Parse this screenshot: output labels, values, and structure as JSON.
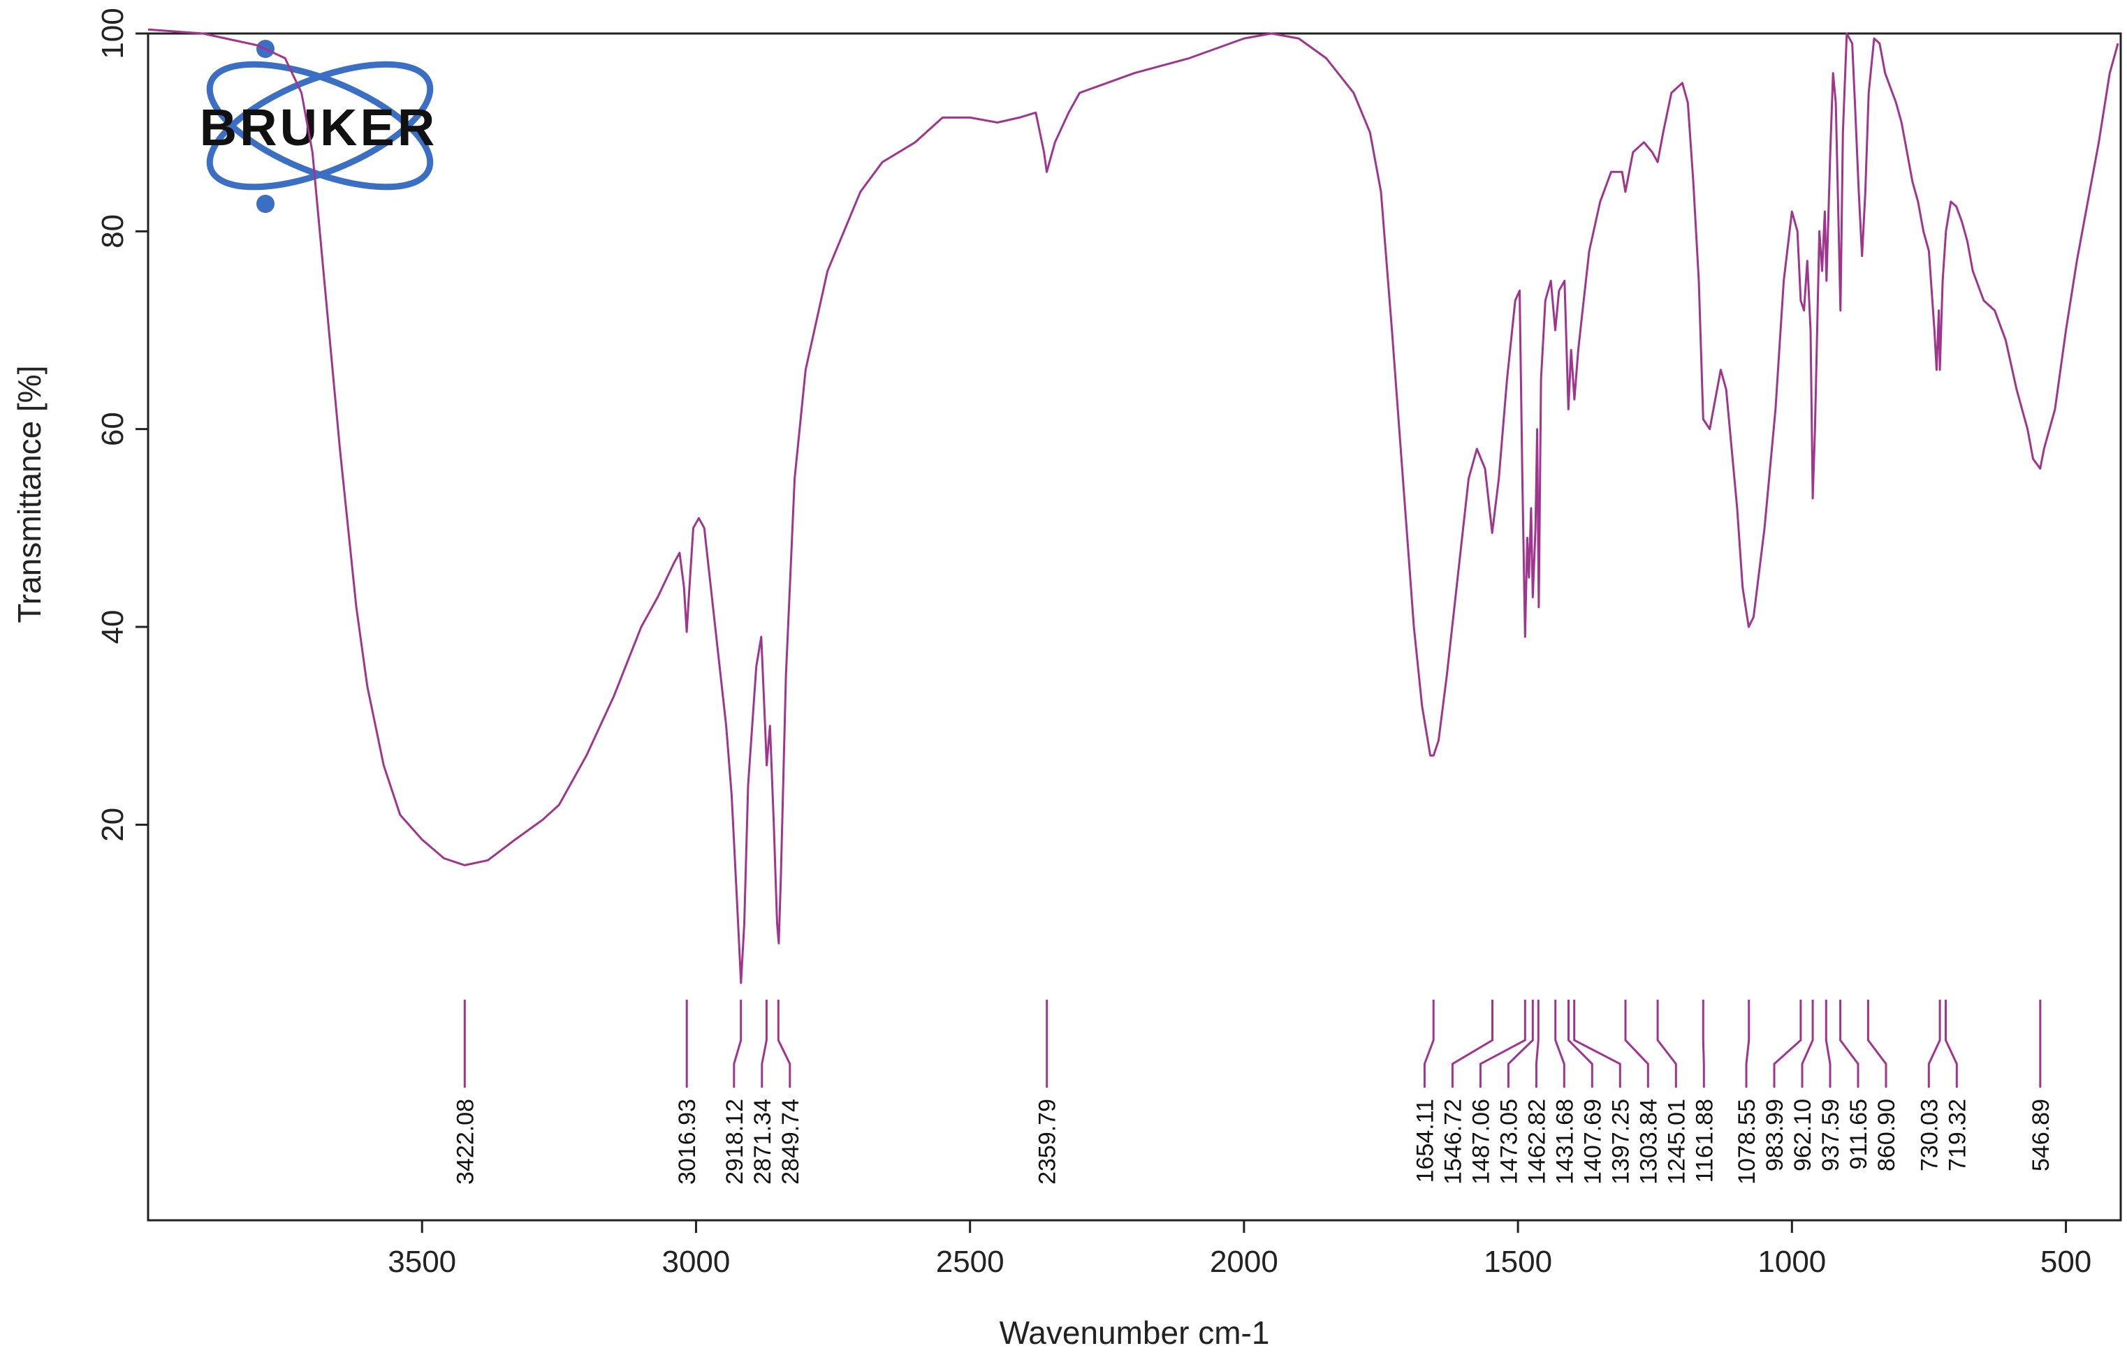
{
  "chart_data": {
    "type": "line",
    "xlabel": "Wavenumber cm-1",
    "ylabel": "Transmittance [%]",
    "x_reversed": true,
    "xlim": [
      4000,
      400
    ],
    "ylim": [
      -20,
      100
    ],
    "x_ticks": [
      3500,
      3000,
      2500,
      2000,
      1500,
      1000,
      500
    ],
    "y_ticks": [
      20,
      40,
      60,
      80,
      100
    ],
    "grid": false,
    "series": [
      {
        "color": "#a0358e",
        "points": [
          [
            4000,
            100.4
          ],
          [
            3900,
            100.0
          ],
          [
            3800,
            98.8
          ],
          [
            3750,
            97.5
          ],
          [
            3720,
            94
          ],
          [
            3700,
            88
          ],
          [
            3680,
            76
          ],
          [
            3650,
            58
          ],
          [
            3620,
            42
          ],
          [
            3600,
            34
          ],
          [
            3570,
            26
          ],
          [
            3540,
            21
          ],
          [
            3500,
            18.5
          ],
          [
            3460,
            16.6
          ],
          [
            3422,
            15.9
          ],
          [
            3380,
            16.4
          ],
          [
            3330,
            18.5
          ],
          [
            3280,
            20.5
          ],
          [
            3250,
            22
          ],
          [
            3200,
            27
          ],
          [
            3150,
            33
          ],
          [
            3100,
            40
          ],
          [
            3070,
            43
          ],
          [
            3040,
            46.5
          ],
          [
            3030,
            47.5
          ],
          [
            3022,
            44
          ],
          [
            3017,
            39.5
          ],
          [
            3012,
            44
          ],
          [
            3005,
            50
          ],
          [
            2995,
            51
          ],
          [
            2985,
            50
          ],
          [
            2965,
            40
          ],
          [
            2945,
            30
          ],
          [
            2935,
            23
          ],
          [
            2925,
            12
          ],
          [
            2918,
            4
          ],
          [
            2912,
            10
          ],
          [
            2905,
            24
          ],
          [
            2890,
            36
          ],
          [
            2881,
            39
          ],
          [
            2874,
            30
          ],
          [
            2871,
            26
          ],
          [
            2865,
            30
          ],
          [
            2858,
            20
          ],
          [
            2852,
            10
          ],
          [
            2849,
            8
          ],
          [
            2845,
            15
          ],
          [
            2836,
            35
          ],
          [
            2820,
            55
          ],
          [
            2800,
            66
          ],
          [
            2760,
            76
          ],
          [
            2700,
            84
          ],
          [
            2660,
            87
          ],
          [
            2600,
            89
          ],
          [
            2550,
            91.5
          ],
          [
            2500,
            91.5
          ],
          [
            2450,
            91
          ],
          [
            2410,
            91.5
          ],
          [
            2380,
            92
          ],
          [
            2365,
            88
          ],
          [
            2360,
            86
          ],
          [
            2345,
            89
          ],
          [
            2320,
            92
          ],
          [
            2300,
            94
          ],
          [
            2200,
            96
          ],
          [
            2100,
            97.5
          ],
          [
            2000,
            99.5
          ],
          [
            1950,
            100
          ],
          [
            1900,
            99.5
          ],
          [
            1850,
            97.5
          ],
          [
            1800,
            94
          ],
          [
            1770,
            90
          ],
          [
            1750,
            84
          ],
          [
            1730,
            70
          ],
          [
            1710,
            55
          ],
          [
            1690,
            40
          ],
          [
            1675,
            32
          ],
          [
            1660,
            27
          ],
          [
            1654,
            27
          ],
          [
            1645,
            28.5
          ],
          [
            1630,
            35
          ],
          [
            1610,
            45
          ],
          [
            1590,
            55
          ],
          [
            1575,
            58
          ],
          [
            1560,
            56
          ],
          [
            1547,
            49.5
          ],
          [
            1535,
            55
          ],
          [
            1520,
            65
          ],
          [
            1505,
            73
          ],
          [
            1497,
            74
          ],
          [
            1492,
            55
          ],
          [
            1487,
            39
          ],
          [
            1483,
            49
          ],
          [
            1480,
            45
          ],
          [
            1476,
            52
          ],
          [
            1473,
            43
          ],
          [
            1468,
            50
          ],
          [
            1465,
            60
          ],
          [
            1462,
            42
          ],
          [
            1458,
            65
          ],
          [
            1450,
            73
          ],
          [
            1440,
            75
          ],
          [
            1432,
            70
          ],
          [
            1425,
            74
          ],
          [
            1415,
            75
          ],
          [
            1408,
            62
          ],
          [
            1403,
            68
          ],
          [
            1397,
            63
          ],
          [
            1390,
            68
          ],
          [
            1380,
            73
          ],
          [
            1370,
            78
          ],
          [
            1350,
            83
          ],
          [
            1330,
            86
          ],
          [
            1310,
            86
          ],
          [
            1304,
            84
          ],
          [
            1290,
            88
          ],
          [
            1270,
            89
          ],
          [
            1255,
            88
          ],
          [
            1245,
            87
          ],
          [
            1235,
            90
          ],
          [
            1220,
            94
          ],
          [
            1200,
            95
          ],
          [
            1190,
            93
          ],
          [
            1180,
            85
          ],
          [
            1170,
            75
          ],
          [
            1162,
            61
          ],
          [
            1150,
            60
          ],
          [
            1140,
            63
          ],
          [
            1130,
            66
          ],
          [
            1120,
            64
          ],
          [
            1100,
            52
          ],
          [
            1090,
            44
          ],
          [
            1079,
            40
          ],
          [
            1070,
            41
          ],
          [
            1050,
            50
          ],
          [
            1030,
            62
          ],
          [
            1015,
            75
          ],
          [
            1000,
            82
          ],
          [
            990,
            80
          ],
          [
            984,
            73
          ],
          [
            978,
            72
          ],
          [
            972,
            77
          ],
          [
            966,
            70
          ],
          [
            962,
            53
          ],
          [
            958,
            60
          ],
          [
            950,
            80
          ],
          [
            945,
            76
          ],
          [
            940,
            82
          ],
          [
            937,
            75
          ],
          [
            930,
            88
          ],
          [
            925,
            96
          ],
          [
            920,
            93
          ],
          [
            915,
            81
          ],
          [
            911.5,
            72
          ],
          [
            907,
            90
          ],
          [
            900,
            100
          ],
          [
            890,
            99
          ],
          [
            885,
            93
          ],
          [
            878,
            84
          ],
          [
            872,
            77.5
          ],
          [
            866,
            84
          ],
          [
            860,
            94
          ],
          [
            850,
            99.5
          ],
          [
            840,
            99
          ],
          [
            830,
            96
          ],
          [
            820,
            94.5
          ],
          [
            810,
            93
          ],
          [
            800,
            91
          ],
          [
            790,
            88
          ],
          [
            780,
            85
          ],
          [
            770,
            83
          ],
          [
            760,
            80
          ],
          [
            750,
            78
          ],
          [
            740,
            70
          ],
          [
            736,
            66
          ],
          [
            732,
            72
          ],
          [
            730,
            66
          ],
          [
            725,
            75
          ],
          [
            719,
            80
          ],
          [
            710,
            83
          ],
          [
            700,
            82.5
          ],
          [
            690,
            81
          ],
          [
            680,
            79
          ],
          [
            670,
            76
          ],
          [
            650,
            73
          ],
          [
            630,
            72
          ],
          [
            610,
            69
          ],
          [
            590,
            64
          ],
          [
            570,
            60
          ],
          [
            560,
            57
          ],
          [
            547,
            56
          ],
          [
            540,
            58
          ],
          [
            530,
            60
          ],
          [
            520,
            62
          ],
          [
            500,
            70
          ],
          [
            480,
            77
          ],
          [
            460,
            83
          ],
          [
            440,
            89
          ],
          [
            420,
            96
          ],
          [
            405,
            99
          ]
        ]
      }
    ],
    "peaks": [
      3422.08,
      3016.93,
      2918.12,
      2871.34,
      2849.74,
      2359.79,
      1654.11,
      1546.72,
      1487.06,
      1473.05,
      1462.82,
      1431.68,
      1407.69,
      1397.25,
      1303.84,
      1245.01,
      1161.88,
      1078.55,
      983.99,
      962.1,
      937.59,
      911.65,
      860.9,
      730.03,
      719.32,
      546.89
    ],
    "peak_labels": [
      "3422.08",
      "3016.93",
      "2918.12",
      "2871.34",
      "2849.74",
      "2359.79",
      "1654.11",
      "1546.72",
      "1487.06",
      "1473.05",
      "1462.82",
      "1431.68",
      "1407.69",
      "1397.25",
      "1303.84",
      "1245.01",
      "1161.88",
      "1078.55",
      "983.99",
      "962.10",
      "937.59",
      "911.65",
      "860.90",
      "730.03",
      "719.32",
      "546.89"
    ],
    "logo": {
      "text": "BRUKER",
      "color": "#3a6fc4"
    }
  }
}
